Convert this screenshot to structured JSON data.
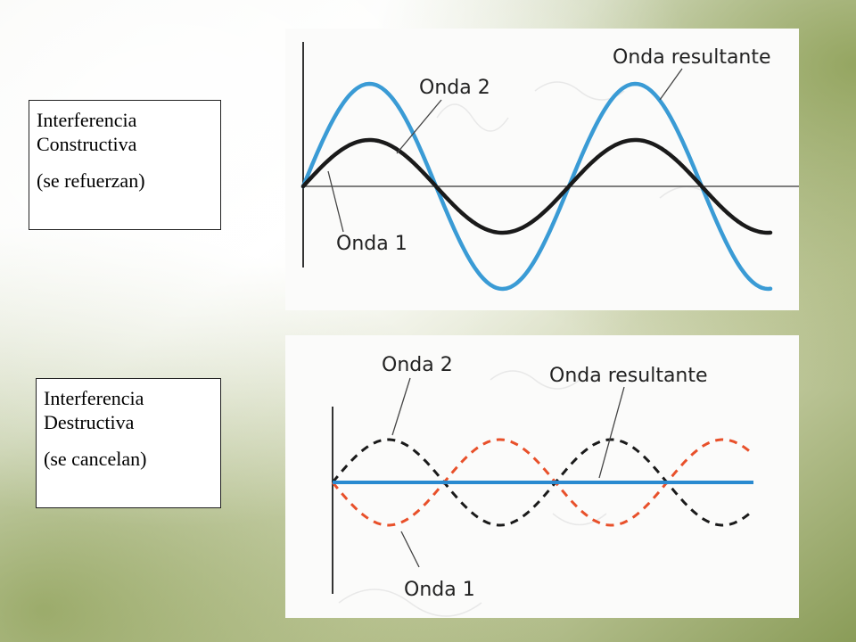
{
  "constructive": {
    "title_line": "Interferencia Constructiva",
    "note": "(se refuerzan)",
    "labels": {
      "wave2": "Onda 2",
      "wave1": "Onda 1",
      "resultant": "Onda resultante"
    },
    "colors": {
      "wave1": "#1a1a1a",
      "resultant": "#3a9bd5"
    }
  },
  "destructive": {
    "title_line": "Interferencia Destructiva",
    "note": "(se cancelan)",
    "labels": {
      "wave2": "Onda 2",
      "wave1": "Onda 1",
      "resultant": "Onda resultante"
    },
    "colors": {
      "wave2": "#1a1a1a",
      "wave1": "#e8502a",
      "resultant": "#2a8ad0"
    }
  }
}
